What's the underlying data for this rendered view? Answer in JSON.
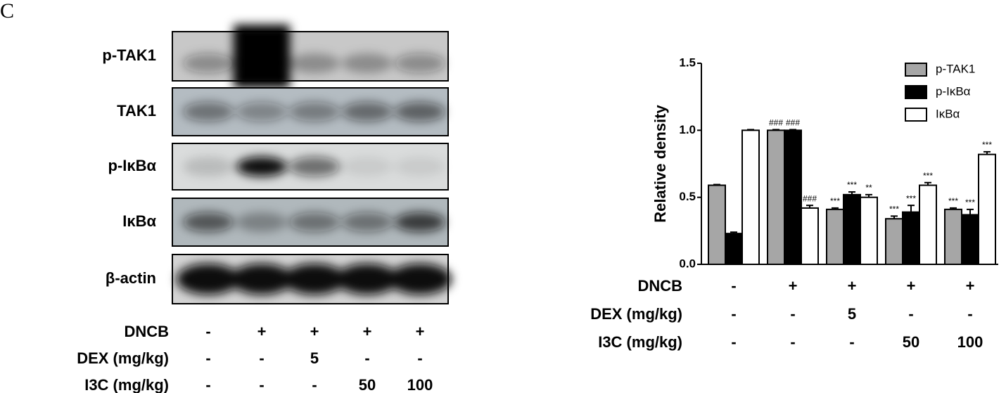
{
  "panel_label": "C",
  "blot": {
    "rows": [
      "p-TAK1",
      "TAK1",
      "p-IκBα",
      "IκBα",
      "β-actin"
    ],
    "treatments": [
      {
        "label": "DNCB",
        "values": [
          "-",
          "+",
          "+",
          "+",
          "+"
        ]
      },
      {
        "label": "DEX (mg/kg)",
        "values": [
          "-",
          "-",
          "5",
          "-",
          "-"
        ]
      },
      {
        "label": "I3C (mg/kg)",
        "values": [
          "-",
          "-",
          "-",
          "50",
          "100"
        ]
      }
    ]
  },
  "chart_data": {
    "type": "bar",
    "ylabel": "Relative density",
    "categories": [
      null,
      null,
      null,
      null,
      null
    ],
    "series": [
      {
        "name": "p-TAK1",
        "color": "#a6a6a6",
        "values": [
          0.59,
          1.0,
          0.41,
          0.34,
          0.41
        ],
        "errors": [
          0.005,
          0.005,
          0.01,
          0.02,
          0.01
        ],
        "significance": [
          null,
          "###",
          "***",
          "***",
          "***"
        ]
      },
      {
        "name": "p-IκBα",
        "color": "#000000",
        "values": [
          0.23,
          1.0,
          0.52,
          0.39,
          0.37
        ],
        "errors": [
          0.01,
          0.005,
          0.02,
          0.05,
          0.04
        ],
        "significance": [
          null,
          "###",
          "***",
          "***",
          "***"
        ]
      },
      {
        "name": "IκBα",
        "color": "#ffffff",
        "values": [
          1.0,
          0.42,
          0.5,
          0.59,
          0.82
        ],
        "errors": [
          0.005,
          0.02,
          0.02,
          0.02,
          0.02
        ],
        "significance": [
          null,
          "###",
          "**",
          "***",
          "***"
        ]
      }
    ],
    "ylim": [
      0,
      1.5
    ],
    "yticks": [
      {
        "value": 0,
        "label": "0.0"
      },
      {
        "value": 0.5,
        "label": "0.5"
      },
      {
        "value": 1,
        "label": "1.0"
      },
      {
        "value": 1.5,
        "label": "1.5"
      }
    ],
    "legend": "top-right",
    "treatments": [
      {
        "label": "DNCB",
        "values": [
          "-",
          "+",
          "+",
          "+",
          "+"
        ]
      },
      {
        "label": "DEX (mg/kg)",
        "values": [
          "-",
          "-",
          "5",
          "-",
          "-"
        ]
      },
      {
        "label": "I3C (mg/kg)",
        "values": [
          "-",
          "-",
          "-",
          "50",
          "100"
        ]
      }
    ]
  }
}
